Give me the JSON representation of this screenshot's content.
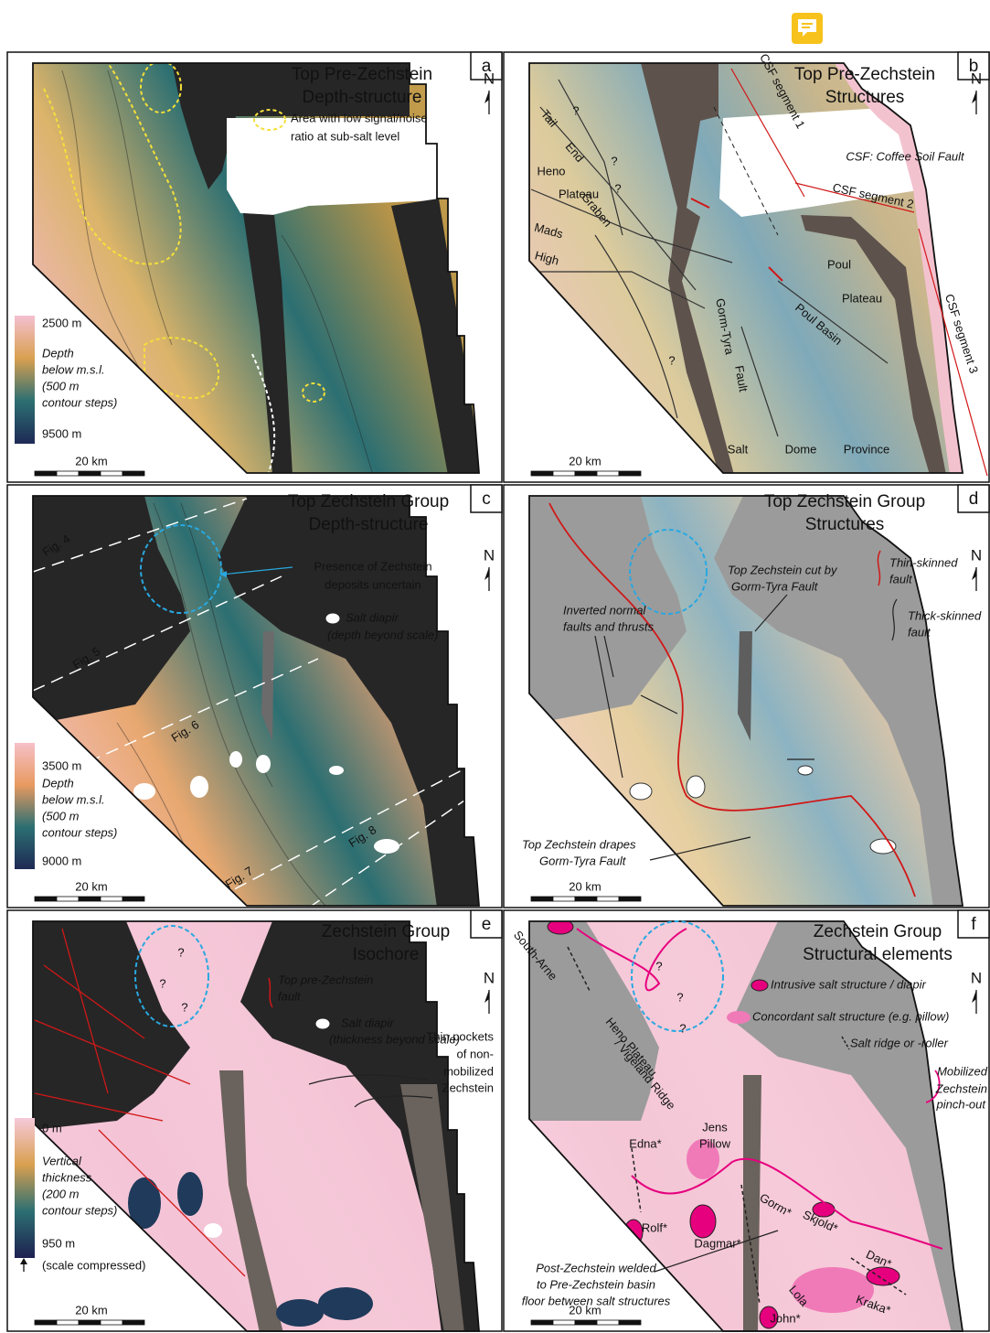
{
  "panels": [
    {
      "letter": "a",
      "title": [
        "Top Pre-Zechstein",
        "Depth-structure"
      ],
      "north": "N",
      "scale_bar": "20 km",
      "colorbar": [
        "2500 m",
        "Depth",
        "below m.s.l.",
        "(500 m",
        "contour steps)",
        "9500 m"
      ],
      "labels": [
        "Area with low signal/noise",
        "ratio at sub-salt level"
      ]
    },
    {
      "letter": "b",
      "title": [
        "Top Pre-Zechstein",
        "Structures"
      ],
      "north": "N",
      "scale_bar": "20 km",
      "labels": [
        "CSF segment 1",
        "CSF: Coffee Soil Fault",
        "CSF segment 2",
        "CSF segment 3",
        "Tail",
        "End",
        "Graben",
        "Heno",
        "Plateau",
        "Mads",
        "High",
        "Gorm-Tyra",
        "Fault",
        "Poul",
        "Plateau",
        "Poul Basin",
        "Salt",
        "Dome",
        "Province",
        "?",
        "?",
        "?",
        "?"
      ]
    },
    {
      "letter": "c",
      "title": [
        "Top Zechstein Group",
        "Depth-structure"
      ],
      "north": "N",
      "scale_bar": "20 km",
      "colorbar": [
        "3500 m",
        "Depth",
        "below m.s.l.",
        "(500 m",
        "contour steps)",
        "9000 m"
      ],
      "labels": [
        "Presence of Zechstein",
        "deposits uncertain",
        "Salt diapir",
        "(depth beyond scale)",
        "Fig. 4",
        "Fig. 5",
        "Fig. 6",
        "Fig. 7",
        "Fig. 8"
      ]
    },
    {
      "letter": "d",
      "title": [
        "Top Zechstein Group",
        "Structures"
      ],
      "north": "N",
      "scale_bar": "20 km",
      "labels": [
        "Top Zechstein cut by",
        "Gorm-Tyra Fault",
        "Thin-skinned",
        "fault",
        "Thick-skinned",
        "fault",
        "Inverted normal",
        "faults and thrusts",
        "Top Zechstein drapes",
        "Gorm-Tyra Fault"
      ]
    },
    {
      "letter": "e",
      "title": [
        "Zechstein Group",
        "Isochore"
      ],
      "north": "N",
      "scale_bar": "20 km",
      "colorbar": [
        "0 m",
        "Vertical",
        "thickness",
        "(200 m",
        "contour steps)",
        "950 m",
        "(scale compressed)"
      ],
      "labels": [
        "Top pre-Zechstein",
        "fault",
        "Salt diapir",
        "(thickness beyond scale)",
        "Thin pockets",
        "of non-",
        "mobilized",
        "Zechstein",
        "?",
        "?",
        "?"
      ]
    },
    {
      "letter": "f",
      "title": [
        "Zechstein Group",
        "Structural elements"
      ],
      "north": "N",
      "scale_bar": "20 km",
      "labels": [
        "South-Arne",
        "Heno Plateau",
        "/ Vigeland Ridge",
        "Intrusive salt structure / diapir",
        "Concordant salt structure (e.g. pillow)",
        "Salt ridge or -roller",
        "Mobilized",
        "Zechstein",
        "pinch-out",
        "Edna*",
        "Jens",
        "Pillow",
        "Rolf*",
        "Dagmar*",
        "Gorm*",
        "Skjold*",
        "Dan*",
        "Lola",
        "Kraka*",
        "John*",
        "Post-Zechstein welded",
        "to Pre-Zechstein basin",
        "floor between salt structures",
        "?",
        "?",
        "?"
      ]
    }
  ]
}
